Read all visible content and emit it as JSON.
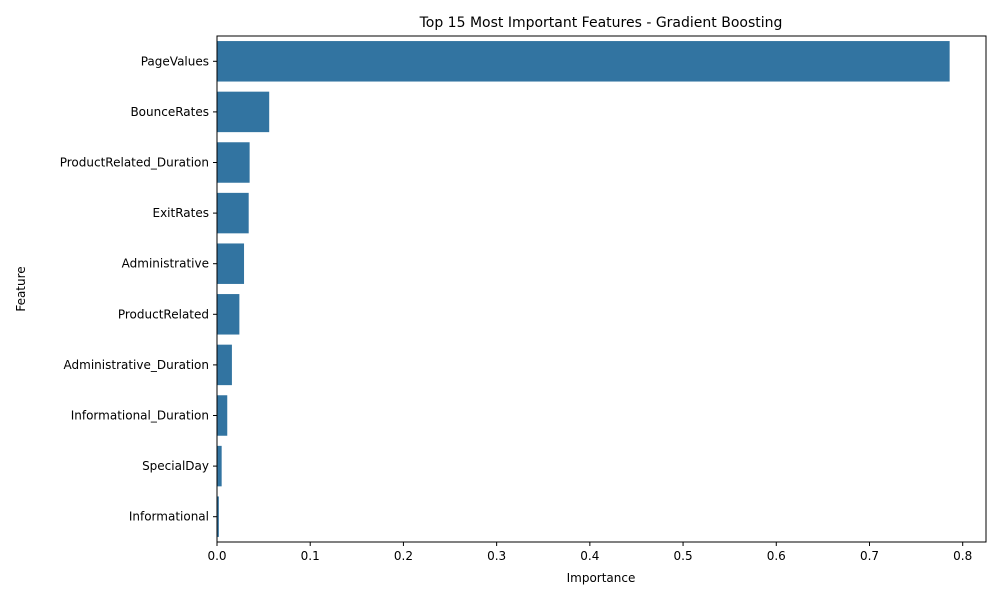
{
  "chart_data": {
    "type": "bar",
    "orientation": "horizontal",
    "title": "Top 15 Most Important Features - Gradient Boosting",
    "xlabel": "Importance",
    "ylabel": "Feature",
    "xlim": [
      0,
      0.825
    ],
    "xticks": [
      0.0,
      0.1,
      0.2,
      0.3,
      0.4,
      0.5,
      0.6,
      0.7,
      0.8
    ],
    "xtick_labels": [
      "0.0",
      "0.1",
      "0.2",
      "0.3",
      "0.4",
      "0.5",
      "0.6",
      "0.7",
      "0.8"
    ],
    "grid": false,
    "bar_color": "#3274a1",
    "categories": [
      "PageValues",
      "BounceRates",
      "ProductRelated_Duration",
      "ExitRates",
      "Administrative",
      "ProductRelated",
      "Administrative_Duration",
      "Informational_Duration",
      "SpecialDay",
      "Informational"
    ],
    "values": [
      0.786,
      0.056,
      0.035,
      0.034,
      0.029,
      0.024,
      0.016,
      0.011,
      0.005,
      0.002
    ]
  }
}
